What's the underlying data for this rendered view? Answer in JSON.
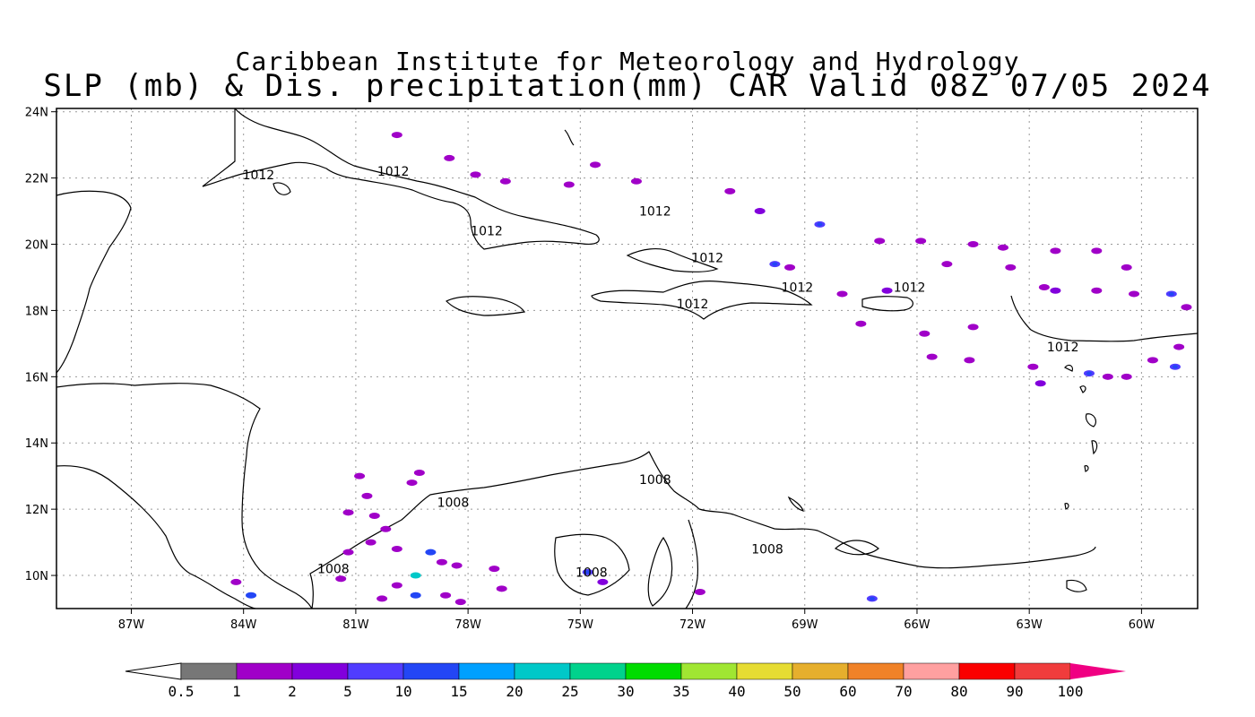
{
  "title": {
    "line1": "Caribbean Institute for Meteorology and Hydrology",
    "line2": "SLP (mb) & Dis. precipitation(mm) CAR Valid 08Z 07/05 2024"
  },
  "map": {
    "lon_range": [
      -89,
      -58.5
    ],
    "lat_range": [
      9,
      24.1
    ],
    "x_ticks": [
      {
        "value": -87,
        "label": "87W"
      },
      {
        "value": -84,
        "label": "84W"
      },
      {
        "value": -81,
        "label": "81W"
      },
      {
        "value": -78,
        "label": "78W"
      },
      {
        "value": -75,
        "label": "75W"
      },
      {
        "value": -72,
        "label": "72W"
      },
      {
        "value": -69,
        "label": "69W"
      },
      {
        "value": -66,
        "label": "66W"
      },
      {
        "value": -63,
        "label": "63W"
      },
      {
        "value": -60,
        "label": "60W"
      }
    ],
    "y_ticks": [
      {
        "value": 10,
        "label": "10N"
      },
      {
        "value": 12,
        "label": "12N"
      },
      {
        "value": 14,
        "label": "14N"
      },
      {
        "value": 16,
        "label": "16N"
      },
      {
        "value": 18,
        "label": "18N"
      },
      {
        "value": 20,
        "label": "20N"
      },
      {
        "value": 22,
        "label": "22N"
      },
      {
        "value": 24,
        "label": "24N"
      }
    ],
    "grid": true,
    "contour_labels": [
      {
        "text": "1012",
        "lon": -83.6,
        "lat": 22.1
      },
      {
        "text": "1012",
        "lon": -80.0,
        "lat": 22.2
      },
      {
        "text": "1012",
        "lon": -77.5,
        "lat": 20.4
      },
      {
        "text": "1012",
        "lon": -73.0,
        "lat": 21.0
      },
      {
        "text": "1012",
        "lon": -71.6,
        "lat": 19.6
      },
      {
        "text": "1012",
        "lon": -72.0,
        "lat": 18.2
      },
      {
        "text": "1012",
        "lon": -69.2,
        "lat": 18.7
      },
      {
        "text": "1012",
        "lon": -66.2,
        "lat": 18.7
      },
      {
        "text": "1012",
        "lon": -62.1,
        "lat": 16.9
      },
      {
        "text": "1008",
        "lon": -78.4,
        "lat": 12.2
      },
      {
        "text": "1008",
        "lon": -73.0,
        "lat": 12.9
      },
      {
        "text": "1008",
        "lon": -70.0,
        "lat": 10.8
      },
      {
        "text": "1008",
        "lon": -74.7,
        "lat": 10.1
      },
      {
        "text": "1008",
        "lon": -81.6,
        "lat": 10.2
      }
    ],
    "precip_cells": [
      {
        "lon": -79.9,
        "lat": 23.3,
        "mm": 1
      },
      {
        "lon": -78.5,
        "lat": 22.6,
        "mm": 1
      },
      {
        "lon": -77.8,
        "lat": 22.1,
        "mm": 1
      },
      {
        "lon": -77.0,
        "lat": 21.9,
        "mm": 1
      },
      {
        "lon": -75.3,
        "lat": 21.8,
        "mm": 1
      },
      {
        "lon": -74.6,
        "lat": 22.4,
        "mm": 1
      },
      {
        "lon": -73.5,
        "lat": 21.9,
        "mm": 1
      },
      {
        "lon": -71.0,
        "lat": 21.6,
        "mm": 1
      },
      {
        "lon": -70.2,
        "lat": 21.0,
        "mm": 2
      },
      {
        "lon": -68.6,
        "lat": 20.6,
        "mm": 5
      },
      {
        "lon": -69.8,
        "lat": 19.4,
        "mm": 5
      },
      {
        "lon": -69.4,
        "lat": 19.3,
        "mm": 1
      },
      {
        "lon": -67.0,
        "lat": 20.1,
        "mm": 1
      },
      {
        "lon": -65.9,
        "lat": 20.1,
        "mm": 1
      },
      {
        "lon": -64.5,
        "lat": 20.0,
        "mm": 1
      },
      {
        "lon": -63.7,
        "lat": 19.9,
        "mm": 1
      },
      {
        "lon": -62.3,
        "lat": 19.8,
        "mm": 1
      },
      {
        "lon": -61.2,
        "lat": 19.8,
        "mm": 1
      },
      {
        "lon": -65.2,
        "lat": 19.4,
        "mm": 1
      },
      {
        "lon": -63.5,
        "lat": 19.3,
        "mm": 1
      },
      {
        "lon": -60.4,
        "lat": 19.3,
        "mm": 1
      },
      {
        "lon": -61.2,
        "lat": 18.6,
        "mm": 1
      },
      {
        "lon": -60.2,
        "lat": 18.5,
        "mm": 1
      },
      {
        "lon": -59.2,
        "lat": 18.5,
        "mm": 5
      },
      {
        "lon": -58.8,
        "lat": 18.1,
        "mm": 1
      },
      {
        "lon": -62.3,
        "lat": 18.6,
        "mm": 2
      },
      {
        "lon": -62.6,
        "lat": 18.7,
        "mm": 1
      },
      {
        "lon": -66.8,
        "lat": 18.6,
        "mm": 2
      },
      {
        "lon": -68.0,
        "lat": 18.5,
        "mm": 1
      },
      {
        "lon": -67.5,
        "lat": 17.6,
        "mm": 1
      },
      {
        "lon": -64.5,
        "lat": 17.5,
        "mm": 1
      },
      {
        "lon": -65.8,
        "lat": 17.3,
        "mm": 1
      },
      {
        "lon": -65.6,
        "lat": 16.6,
        "mm": 1
      },
      {
        "lon": -64.6,
        "lat": 16.5,
        "mm": 1
      },
      {
        "lon": -62.9,
        "lat": 16.3,
        "mm": 1
      },
      {
        "lon": -62.7,
        "lat": 15.8,
        "mm": 2
      },
      {
        "lon": -61.4,
        "lat": 16.1,
        "mm": 5
      },
      {
        "lon": -60.9,
        "lat": 16.0,
        "mm": 1
      },
      {
        "lon": -59.7,
        "lat": 16.5,
        "mm": 1
      },
      {
        "lon": -59.1,
        "lat": 16.3,
        "mm": 5
      },
      {
        "lon": -60.4,
        "lat": 16.0,
        "mm": 1
      },
      {
        "lon": -59.0,
        "lat": 16.9,
        "mm": 1
      },
      {
        "lon": -67.2,
        "lat": 9.3,
        "mm": 5
      },
      {
        "lon": -74.8,
        "lat": 10.1,
        "mm": 5
      },
      {
        "lon": -74.4,
        "lat": 9.8,
        "mm": 2
      },
      {
        "lon": -71.8,
        "lat": 9.5,
        "mm": 1
      },
      {
        "lon": -80.7,
        "lat": 12.4,
        "mm": 1
      },
      {
        "lon": -80.9,
        "lat": 13.0,
        "mm": 1
      },
      {
        "lon": -79.5,
        "lat": 12.8,
        "mm": 1
      },
      {
        "lon": -79.3,
        "lat": 13.1,
        "mm": 1
      },
      {
        "lon": -81.2,
        "lat": 11.9,
        "mm": 1
      },
      {
        "lon": -80.5,
        "lat": 11.8,
        "mm": 1
      },
      {
        "lon": -80.2,
        "lat": 11.4,
        "mm": 1
      },
      {
        "lon": -80.6,
        "lat": 11.0,
        "mm": 1
      },
      {
        "lon": -79.9,
        "lat": 10.8,
        "mm": 1
      },
      {
        "lon": -79.0,
        "lat": 10.7,
        "mm": 10
      },
      {
        "lon": -78.7,
        "lat": 10.4,
        "mm": 1
      },
      {
        "lon": -78.3,
        "lat": 10.3,
        "mm": 1
      },
      {
        "lon": -79.4,
        "lat": 10.0,
        "mm": 20
      },
      {
        "lon": -79.9,
        "lat": 9.7,
        "mm": 1
      },
      {
        "lon": -80.3,
        "lat": 9.3,
        "mm": 1
      },
      {
        "lon": -79.4,
        "lat": 9.4,
        "mm": 10
      },
      {
        "lon": -78.6,
        "lat": 9.4,
        "mm": 1
      },
      {
        "lon": -78.2,
        "lat": 9.2,
        "mm": 1
      },
      {
        "lon": -81.2,
        "lat": 10.7,
        "mm": 1
      },
      {
        "lon": -81.4,
        "lat": 9.9,
        "mm": 1
      },
      {
        "lon": -83.8,
        "lat": 9.4,
        "mm": 10
      },
      {
        "lon": -84.2,
        "lat": 9.8,
        "mm": 1
      },
      {
        "lon": -77.3,
        "lat": 10.2,
        "mm": 1
      },
      {
        "lon": -77.1,
        "lat": 9.6,
        "mm": 1
      }
    ]
  },
  "colorbar": {
    "labels": [
      "0.5",
      "1",
      "2",
      "5",
      "10",
      "15",
      "20",
      "25",
      "30",
      "35",
      "40",
      "50",
      "60",
      "70",
      "80",
      "90",
      "100"
    ],
    "colors": [
      "#777777",
      "#a000c8",
      "#8200dc",
      "#503cff",
      "#2346f5",
      "#00a0ff",
      "#00c8c8",
      "#00d28c",
      "#00dc00",
      "#a0e632",
      "#e6dc32",
      "#e6af2d",
      "#f08228",
      "#ffa0a0",
      "#fa0000",
      "#f03c3c",
      "#f00082"
    ],
    "under_color": "#ffffff",
    "over_color": "#f00082"
  }
}
